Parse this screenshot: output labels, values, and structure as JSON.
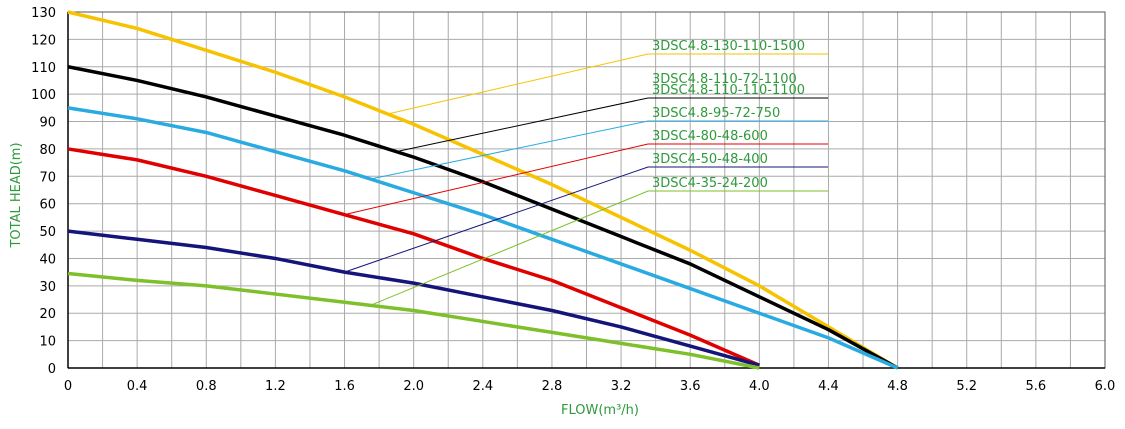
{
  "chart_data": {
    "type": "line",
    "xlabel": "FLOW(m³/h)",
    "ylabel": "TOTAL HEAD(m)",
    "xlim": [
      0,
      6
    ],
    "ylim": [
      0,
      130
    ],
    "xticks": [
      0,
      0.4,
      0.8,
      1.2,
      1.6,
      {
        "value": 2,
        "label": "2.0"
      },
      2.4,
      2.8,
      3.2,
      3.6,
      {
        "value": 4,
        "label": "4.0"
      },
      4.4,
      4.8,
      5.2,
      5.6,
      {
        "value": 6,
        "label": "6.0"
      }
    ],
    "yticks": [
      0,
      10,
      20,
      30,
      40,
      50,
      60,
      70,
      80,
      90,
      100,
      110,
      120,
      130
    ],
    "grid": true,
    "series": [
      {
        "name": "3DSC4.8-130-110-1500",
        "color": "#f7c200",
        "x": [
          0,
          0.4,
          0.8,
          1.2,
          1.6,
          2,
          2.4,
          2.8,
          3.2,
          3.6,
          4,
          4.4,
          4.8
        ],
        "values": [
          130,
          124,
          116,
          108,
          99,
          89,
          78,
          67,
          55,
          43,
          30,
          15,
          0
        ]
      },
      {
        "name": "3DSC4.8-110-110-1100",
        "color": "#000000",
        "x": [
          0,
          0.4,
          0.8,
          1.2,
          1.6,
          2,
          2.4,
          2.8,
          3.2,
          3.6,
          4,
          4.4,
          4.8
        ],
        "values": [
          110,
          105,
          99,
          92,
          85,
          77,
          68,
          58,
          48,
          38,
          26,
          14,
          0
        ]
      },
      {
        "name": "3DSC4.8-95-72-750",
        "color": "#29abe2",
        "x": [
          0,
          0.4,
          0.8,
          1.2,
          1.6,
          2,
          2.4,
          2.8,
          3.2,
          3.6,
          4,
          4.4,
          4.8
        ],
        "values": [
          95,
          91,
          86,
          79,
          72,
          64,
          56,
          47,
          38,
          29,
          20,
          11,
          0
        ]
      },
      {
        "name": "3DSC4-80-48-600",
        "color": "#e00000",
        "x": [
          0,
          0.4,
          0.8,
          1.2,
          1.6,
          2,
          2.4,
          2.8,
          3.2,
          3.6,
          4
        ],
        "values": [
          80,
          76,
          70,
          63,
          56,
          49,
          40,
          32,
          22,
          12,
          1
        ]
      },
      {
        "name": "3DSC4-50-48-400",
        "color": "#14147a",
        "x": [
          0,
          0.4,
          0.8,
          1.2,
          1.6,
          2,
          2.4,
          2.8,
          3.2,
          3.6,
          4
        ],
        "values": [
          50,
          47,
          44,
          40,
          35,
          31,
          26,
          21,
          15,
          8,
          1
        ]
      },
      {
        "name": "3DSC4-35-24-200",
        "color": "#7dc02a",
        "x": [
          0,
          0.4,
          0.8,
          1.2,
          1.6,
          2,
          2.4,
          2.8,
          3.2,
          3.6,
          4
        ],
        "values": [
          34.5,
          32,
          30,
          27,
          24,
          21,
          17,
          13,
          9,
          5,
          0
        ]
      }
    ],
    "annotations": [
      {
        "text": "3DSC4.8-110-72-1100"
      }
    ]
  }
}
